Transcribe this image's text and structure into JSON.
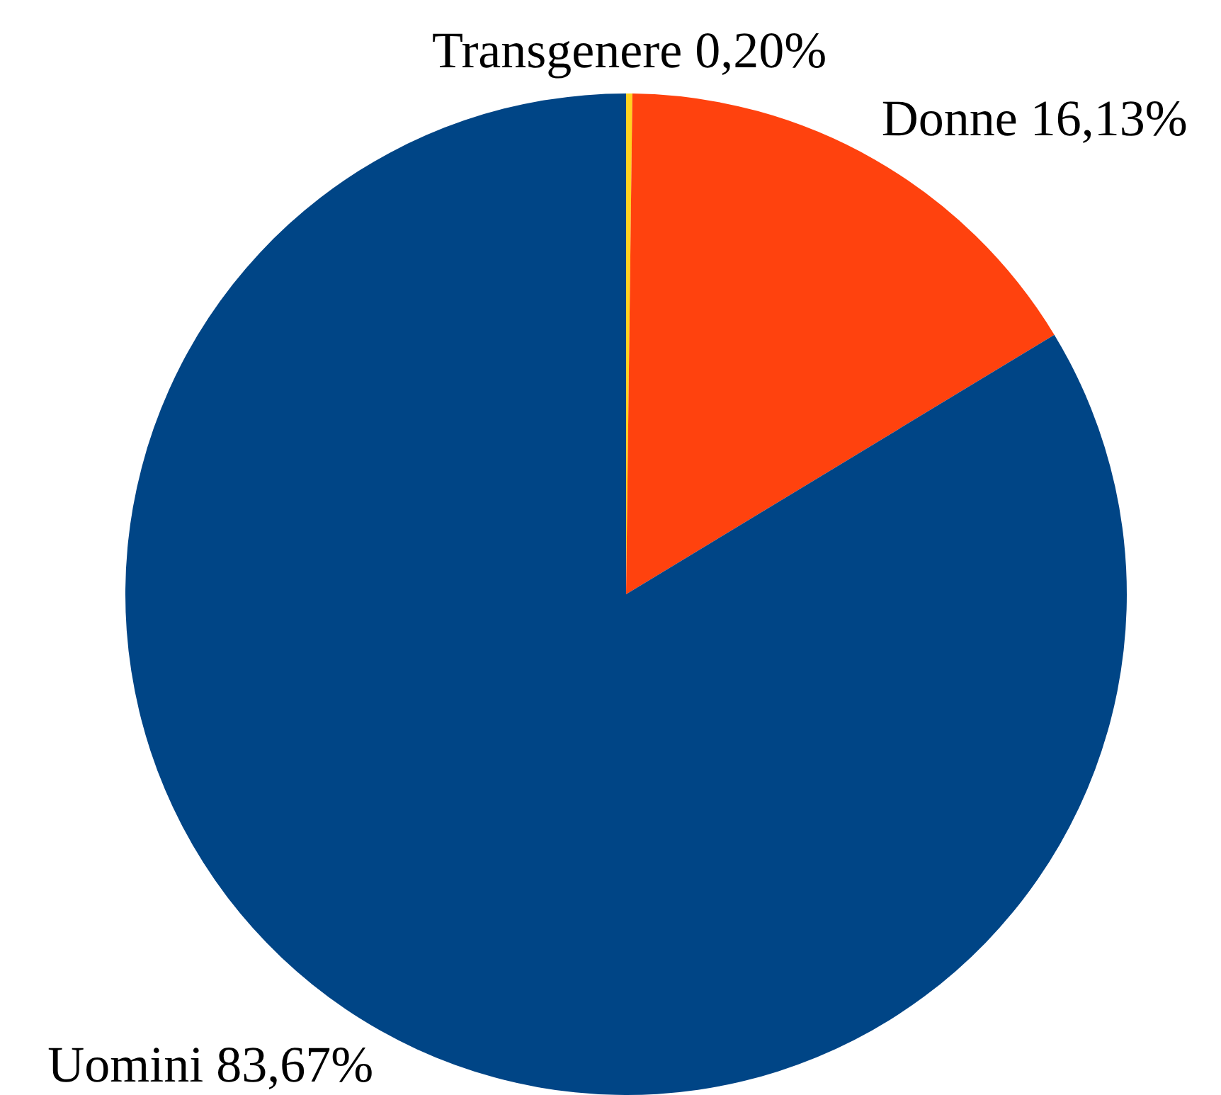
{
  "chart_data": {
    "type": "pie",
    "categories": [
      "Transgenere",
      "Donne",
      "Uomini"
    ],
    "values": [
      0.2,
      16.13,
      83.67
    ],
    "colors": [
      "#ffd320",
      "#ff420e",
      "#004586"
    ],
    "value_labels": [
      "0,20%",
      "16,13%",
      "83,67%"
    ],
    "legend": false
  }
}
